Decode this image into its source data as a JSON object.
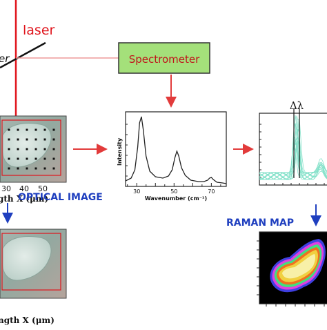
{
  "laser_label": "laser",
  "splitter_label_fragment": "er",
  "spectrometer_label": "Spectrometer",
  "optical_image": {
    "title": "OPTICAL IMAGE",
    "x_ticks": [
      "30",
      "40",
      "50"
    ],
    "x_label_top": "gth X (μm)",
    "x_label_bottom": "ngth X (μm)"
  },
  "spectrum": {
    "ylabel": "Intensity",
    "xlabel": "Wavenumber (cm⁻¹)",
    "x_ticks": [
      "30",
      "50",
      "70"
    ]
  },
  "overlay": {
    "delta_label": "Δλ"
  },
  "raman_map": {
    "title": "RAMAN MAP"
  },
  "colors": {
    "laser_red": "#e0141c",
    "flow_red": "#e23b3b",
    "title_blue": "#1f3fbf",
    "spectrometer_box": "#a4e07a",
    "spectrometer_text": "#c0151b",
    "overlay_curve": "#7fe0c8"
  },
  "chart_data": {
    "type": "line",
    "xlabel": "Wavenumber (cm⁻¹)",
    "ylabel": "Intensity",
    "x_ticks": [
      30,
      50,
      70
    ],
    "xlim": [
      24,
      78
    ],
    "series": [
      {
        "x": [
          24,
          27,
          29,
          30.5,
          31.5,
          32.5,
          33.5,
          35,
          37,
          40,
          44,
          47,
          49,
          50.5,
          51.5,
          52.5,
          54,
          56,
          59,
          63,
          66,
          68,
          69,
          70,
          71,
          73,
          76,
          78
        ],
        "y": [
          0.06,
          0.1,
          0.22,
          0.55,
          0.9,
          0.99,
          0.8,
          0.42,
          0.2,
          0.12,
          0.1,
          0.13,
          0.22,
          0.4,
          0.49,
          0.42,
          0.25,
          0.14,
          0.07,
          0.05,
          0.05,
          0.07,
          0.1,
          0.11,
          0.08,
          0.04,
          0.03,
          0.02
        ]
      }
    ]
  }
}
